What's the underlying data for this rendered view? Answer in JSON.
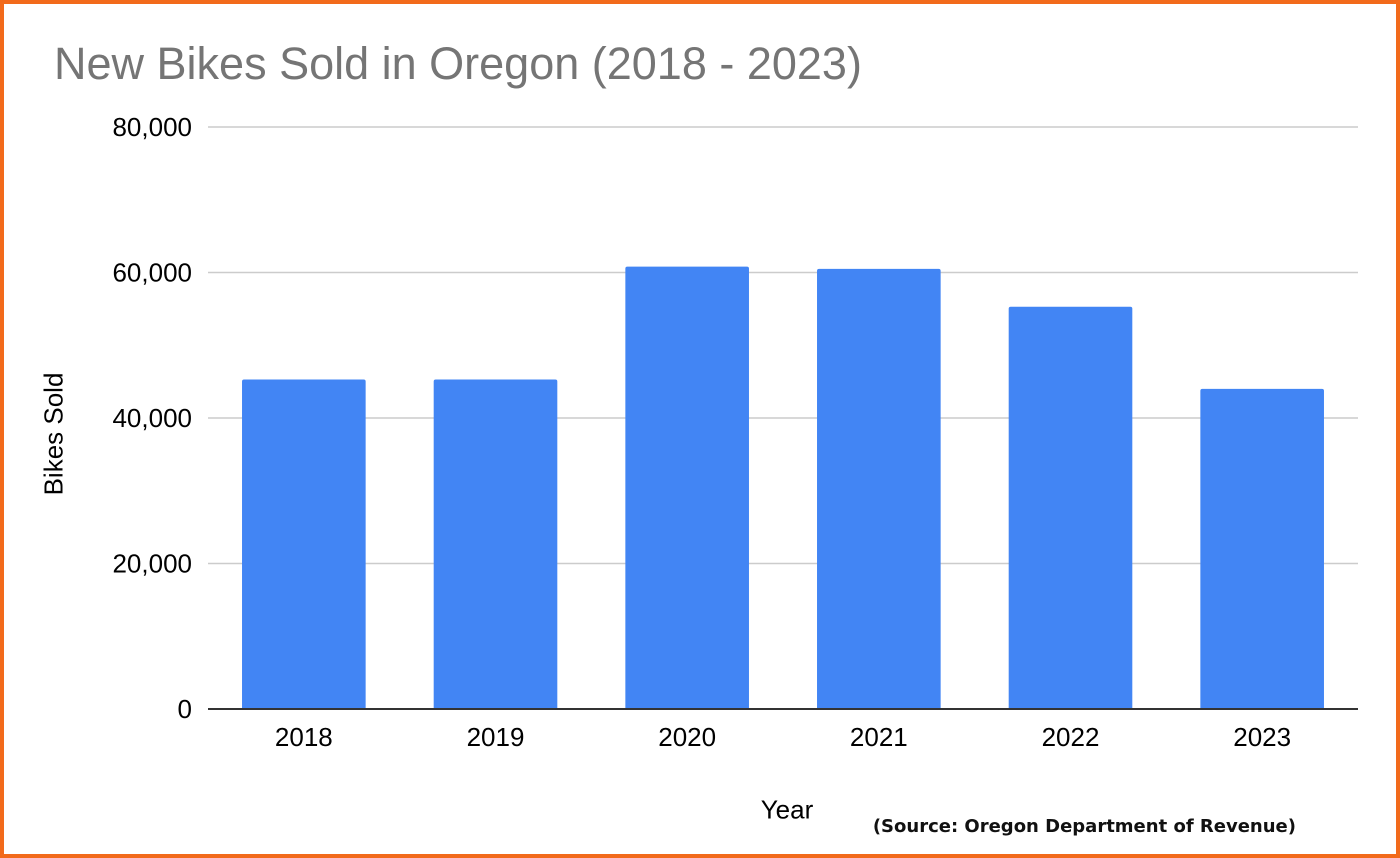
{
  "chart_data": {
    "type": "bar",
    "title": "New Bikes Sold in Oregon (2018 - 2023)",
    "xlabel": "Year",
    "ylabel": "Bikes Sold",
    "categories": [
      "2018",
      "2019",
      "2020",
      "2021",
      "2022",
      "2023"
    ],
    "values": [
      45300,
      45300,
      60800,
      60500,
      55300,
      44000
    ],
    "ylim": [
      0,
      80000
    ],
    "yticks": [
      0,
      20000,
      40000,
      60000,
      80000
    ],
    "ytick_labels": [
      "0",
      "20,000",
      "40,000",
      "60,000",
      "80,000"
    ],
    "grid": true,
    "legend": "none",
    "colors": {
      "bar": "#4285f4",
      "grid": "#cccccc",
      "axis": "#333333",
      "border": "#f26a1b",
      "title": "#757575"
    }
  },
  "source_note": "(Source: Oregon Department of Revenue)"
}
